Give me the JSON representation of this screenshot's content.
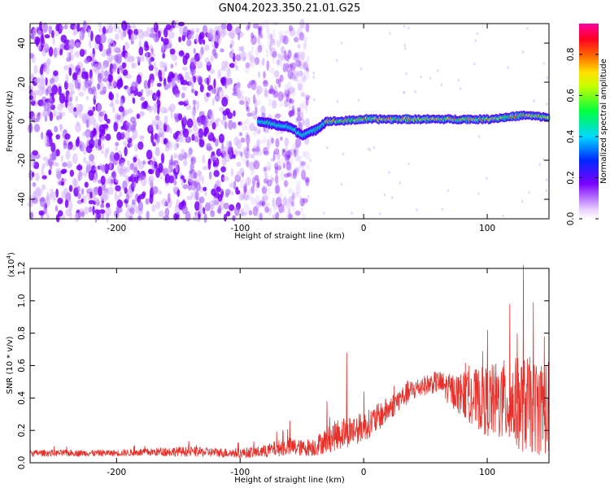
{
  "chart_data": [
    {
      "type": "heatmap",
      "title": "GN04.2023.350.21.01.G25",
      "xlabel": "Height of straight line (km)",
      "ylabel": "Frequency (Hz)",
      "xlim": [
        -270,
        150
      ],
      "ylim": [
        -50,
        50
      ],
      "x_ticks": [
        "-200",
        "-100",
        "0",
        "100"
      ],
      "y_ticks": [
        "-40",
        "-20",
        "0",
        "20",
        "40"
      ],
      "colorbar": {
        "label": "Normalized spectral amplitude",
        "range": [
          0.0,
          0.95
        ],
        "ticks": [
          "0.0",
          "0.2",
          "0.4",
          "0.6",
          "0.8"
        ],
        "colormap": "rainbow (violet-blue-cyan-green-yellow-red-magenta)"
      },
      "features": {
        "noise_region_x": [
          -270,
          -45
        ],
        "signal_start_x": -85,
        "signal_line_frequency_hz": [
          [
            -85,
            0
          ],
          [
            -70,
            -2
          ],
          [
            -60,
            -3
          ],
          [
            -50,
            -7
          ],
          [
            -40,
            -5
          ],
          [
            -30,
            0
          ],
          [
            -20,
            0
          ],
          [
            0,
            1
          ],
          [
            50,
            1
          ],
          [
            100,
            1
          ],
          [
            130,
            3
          ],
          [
            150,
            2
          ]
        ]
      },
      "grid": false
    },
    {
      "type": "line",
      "title": "",
      "xlabel": "Height of straight line (km)",
      "ylabel": "SNR (10 * v/v)",
      "y_multiplier_label": "(x10",
      "y_multiplier_exp": "4",
      "y_multiplier_close": ")",
      "xlim": [
        -270,
        150
      ],
      "ylim": [
        0,
        1.2
      ],
      "x_ticks": [
        "-200",
        "-100",
        "0",
        "100"
      ],
      "y_ticks": [
        "0.0",
        "0.2",
        "0.4",
        "0.6",
        "0.8",
        "1.0",
        "1.2"
      ],
      "series": [
        {
          "color": "#e8302a",
          "envelope_x": [
            -270,
            -200,
            -150,
            -100,
            -80,
            -70,
            -60,
            -50,
            -40,
            -30,
            -20,
            -10,
            0,
            10,
            20,
            30,
            40,
            50,
            60,
            70,
            80,
            90,
            100,
            110,
            120,
            130,
            140,
            150
          ],
          "envelope_mean": [
            0.06,
            0.06,
            0.07,
            0.06,
            0.07,
            0.09,
            0.1,
            0.09,
            0.1,
            0.14,
            0.18,
            0.2,
            0.22,
            0.27,
            0.33,
            0.4,
            0.45,
            0.48,
            0.5,
            0.45,
            0.42,
            0.4,
            0.38,
            0.38,
            0.37,
            0.36,
            0.35,
            0.34
          ],
          "envelope_spread": [
            0.02,
            0.02,
            0.03,
            0.03,
            0.04,
            0.05,
            0.06,
            0.05,
            0.06,
            0.08,
            0.1,
            0.1,
            0.09,
            0.09,
            0.08,
            0.07,
            0.07,
            0.06,
            0.07,
            0.1,
            0.14,
            0.18,
            0.22,
            0.25,
            0.28,
            0.3,
            0.3,
            0.3
          ],
          "peaks": [
            [
              -60,
              0.26
            ],
            [
              -30,
              0.38
            ],
            [
              -14,
              0.68
            ],
            [
              0,
              0.44
            ],
            [
              85,
              0.6
            ],
            [
              100,
              0.82
            ],
            [
              118,
              0.98
            ],
            [
              124,
              0.8
            ],
            [
              129,
              1.22
            ],
            [
              137,
              0.99
            ],
            [
              146,
              0.78
            ]
          ]
        }
      ],
      "grid": false
    }
  ]
}
